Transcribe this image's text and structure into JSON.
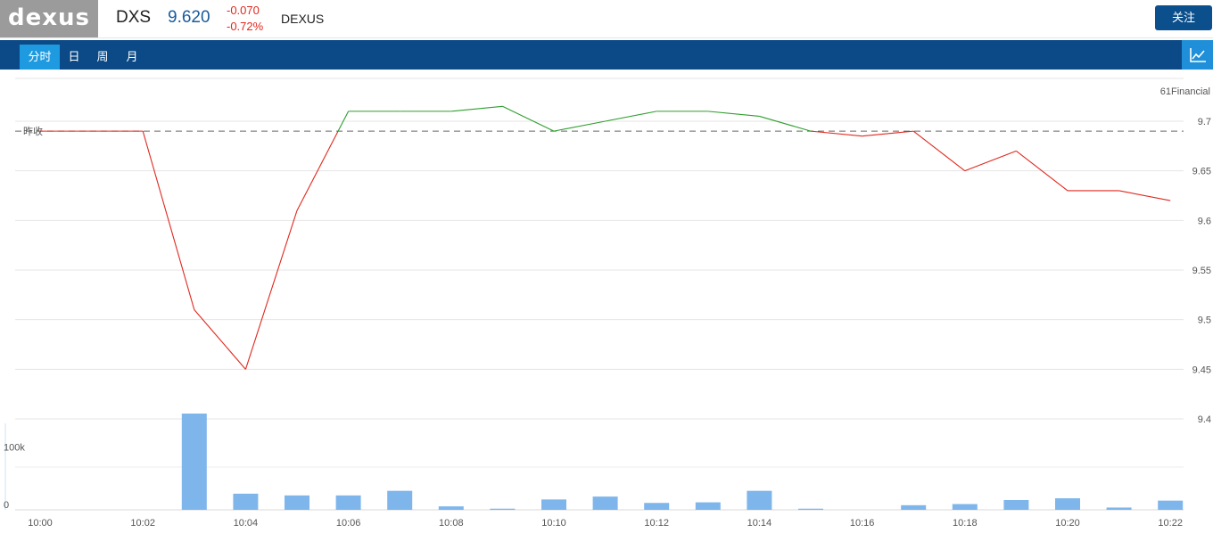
{
  "header": {
    "logo_text": "dexus",
    "symbol": "DXS",
    "price": "9.620",
    "change": "-0.070",
    "change_pct": "-0.72%",
    "company": "DEXUS",
    "follow_label": "关注"
  },
  "tabs": [
    {
      "label": "分时",
      "active": true
    },
    {
      "label": "日",
      "active": false
    },
    {
      "label": "周",
      "active": false
    },
    {
      "label": "月",
      "active": false
    }
  ],
  "chart_toggle_icon": "line-chart-icon",
  "colors": {
    "up": "#2e9e2e",
    "down": "#e0281e",
    "volume": "#7eb6ec",
    "accent": "#0b4a86"
  },
  "chart_data": {
    "type": "line",
    "watermark": "61Financial",
    "prev_close_label": "昨收",
    "prev_close": 9.69,
    "price_yaxis": {
      "min": 9.4,
      "max": 9.7,
      "ticks": [
        9.7,
        9.65,
        9.6,
        9.55,
        9.5,
        9.45,
        9.4
      ],
      "tick_labels": [
        "9.7",
        "9.65",
        "9.6",
        "9.55",
        "9.5",
        "9.45",
        "9.4"
      ]
    },
    "volume_yaxis": {
      "min": 0,
      "max": 150000,
      "ticks": [
        0,
        100000
      ],
      "tick_labels": [
        "0",
        "100k"
      ]
    },
    "x_ticks": [
      "10:00",
      "10:02",
      "10:04",
      "10:06",
      "10:08",
      "10:10",
      "10:12",
      "10:14",
      "10:16",
      "10:18",
      "10:20",
      "10:22"
    ],
    "x_minutes": [
      0,
      1,
      2,
      3,
      4,
      5,
      6,
      7,
      8,
      9,
      10,
      11,
      12,
      13,
      14,
      15,
      16,
      17,
      18,
      19,
      20,
      21,
      22
    ],
    "price": [
      9.69,
      9.69,
      9.69,
      9.51,
      9.45,
      9.61,
      9.71,
      9.71,
      9.71,
      9.715,
      9.69,
      9.7,
      9.71,
      9.71,
      9.705,
      9.69,
      9.685,
      9.69,
      9.65,
      9.67,
      9.63,
      9.63,
      9.62
    ],
    "volume": [
      0,
      0,
      0,
      167000,
      28000,
      25000,
      25000,
      33000,
      6000,
      2000,
      18000,
      23000,
      12000,
      13000,
      33000,
      2000,
      0,
      8000,
      10000,
      17000,
      20000,
      4000,
      16000
    ]
  }
}
